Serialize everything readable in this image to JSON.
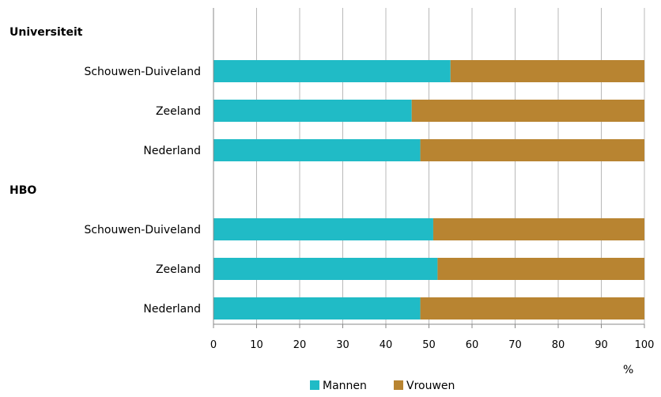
{
  "chart_data": {
    "type": "bar",
    "orientation": "horizontal",
    "stacked": true,
    "title": "",
    "xlabel": "%",
    "ylabel": "",
    "xlim": [
      0,
      100
    ],
    "x_ticks": [
      "0",
      "10",
      "20",
      "30",
      "40",
      "50",
      "60",
      "70",
      "80",
      "90",
      "100"
    ],
    "grid": true,
    "legend_position": "bottom",
    "groups": [
      {
        "label": "Universiteit",
        "categories": [
          "Schouwen-Duiveland",
          "Zeeland",
          "Nederland"
        ],
        "series": [
          {
            "name": "Mannen",
            "color": "#20BBC6",
            "values": [
              55,
              46,
              48
            ]
          },
          {
            "name": "Vrouwen",
            "color": "#B88431",
            "values": [
              45,
              54,
              52
            ]
          }
        ]
      },
      {
        "label": "HBO",
        "categories": [
          "Schouwen-Duiveland",
          "Zeeland",
          "Nederland"
        ],
        "series": [
          {
            "name": "Mannen",
            "color": "#20BBC6",
            "values": [
              51,
              52,
              48
            ]
          },
          {
            "name": "Vrouwen",
            "color": "#B88431",
            "values": [
              49,
              48,
              52
            ]
          }
        ]
      }
    ],
    "legend": [
      {
        "name": "Mannen",
        "color": "#20BBC6"
      },
      {
        "name": "Vrouwen",
        "color": "#B88431"
      }
    ]
  }
}
